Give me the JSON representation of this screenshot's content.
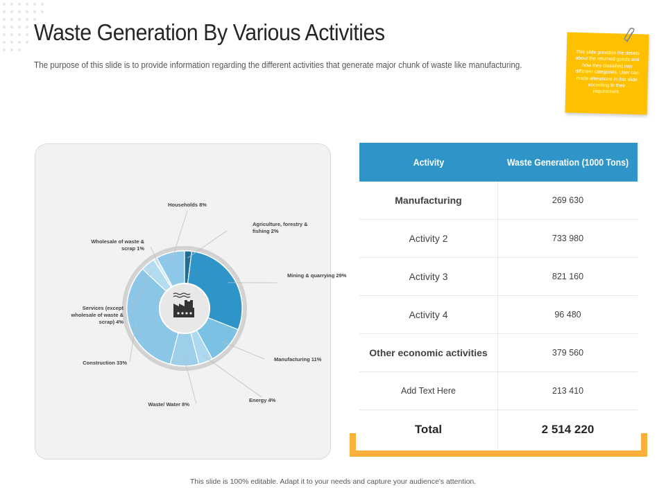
{
  "header": {
    "title": "Waste Generation By Various Activities",
    "subtitle": "The purpose of this slide is to provide information regarding the different activities that generate major chunk of waste like manufacturing."
  },
  "note": {
    "text": "This slide provides the details about the returned goods and how they classified into different categories. User can made alterations in this slide according to their requirement.",
    "color": "#ffc000"
  },
  "chart_data": {
    "type": "pie",
    "style": "donut",
    "center_icon": "factory-icon",
    "slices": [
      {
        "label": "Agriculture, forestry & fishing 2%",
        "value": 2,
        "color": "#1e6f98"
      },
      {
        "label": "Mining & quarrying 29%",
        "value": 29,
        "color": "#2f95c8"
      },
      {
        "label": "Manufacturing 11%",
        "value": 11,
        "color": "#7ac1e3"
      },
      {
        "label": "Energy 4%",
        "value": 4,
        "color": "#aed8ef"
      },
      {
        "label": "Waste/ Water 8%",
        "value": 8,
        "color": "#9ecfea"
      },
      {
        "label": "Construction 33%",
        "value": 33,
        "color": "#8bc6e6"
      },
      {
        "label": "Services (except wholesale of waste & scrap) 4%",
        "value": 4,
        "color": "#b3dcf1"
      },
      {
        "label": "Wholesale of waste & scrap 1%",
        "value": 1,
        "color": "#d5ecf8"
      },
      {
        "label": "Households 8%",
        "value": 8,
        "color": "#8ec8e8"
      }
    ]
  },
  "table": {
    "headers": [
      "Activity",
      "Waste Generation (1000 Tons)"
    ],
    "rows": [
      {
        "activity": "Manufacturing",
        "value": "269 630"
      },
      {
        "activity": "Activity 2",
        "value": "733 980"
      },
      {
        "activity": "Activity 3",
        "value": "821 160"
      },
      {
        "activity": "Activity 4",
        "value": "96 480"
      },
      {
        "activity": "Other economic activities",
        "value": "379 560"
      },
      {
        "activity": "Add Text Here",
        "value": "213 410"
      }
    ],
    "total_label": "Total",
    "total_value": "2 514 220",
    "header_color": "#2f95c8",
    "accent_color": "#fbb03b"
  },
  "footer": {
    "text": "This slide is 100% editable. Adapt it to your needs and capture your audience's attention."
  }
}
